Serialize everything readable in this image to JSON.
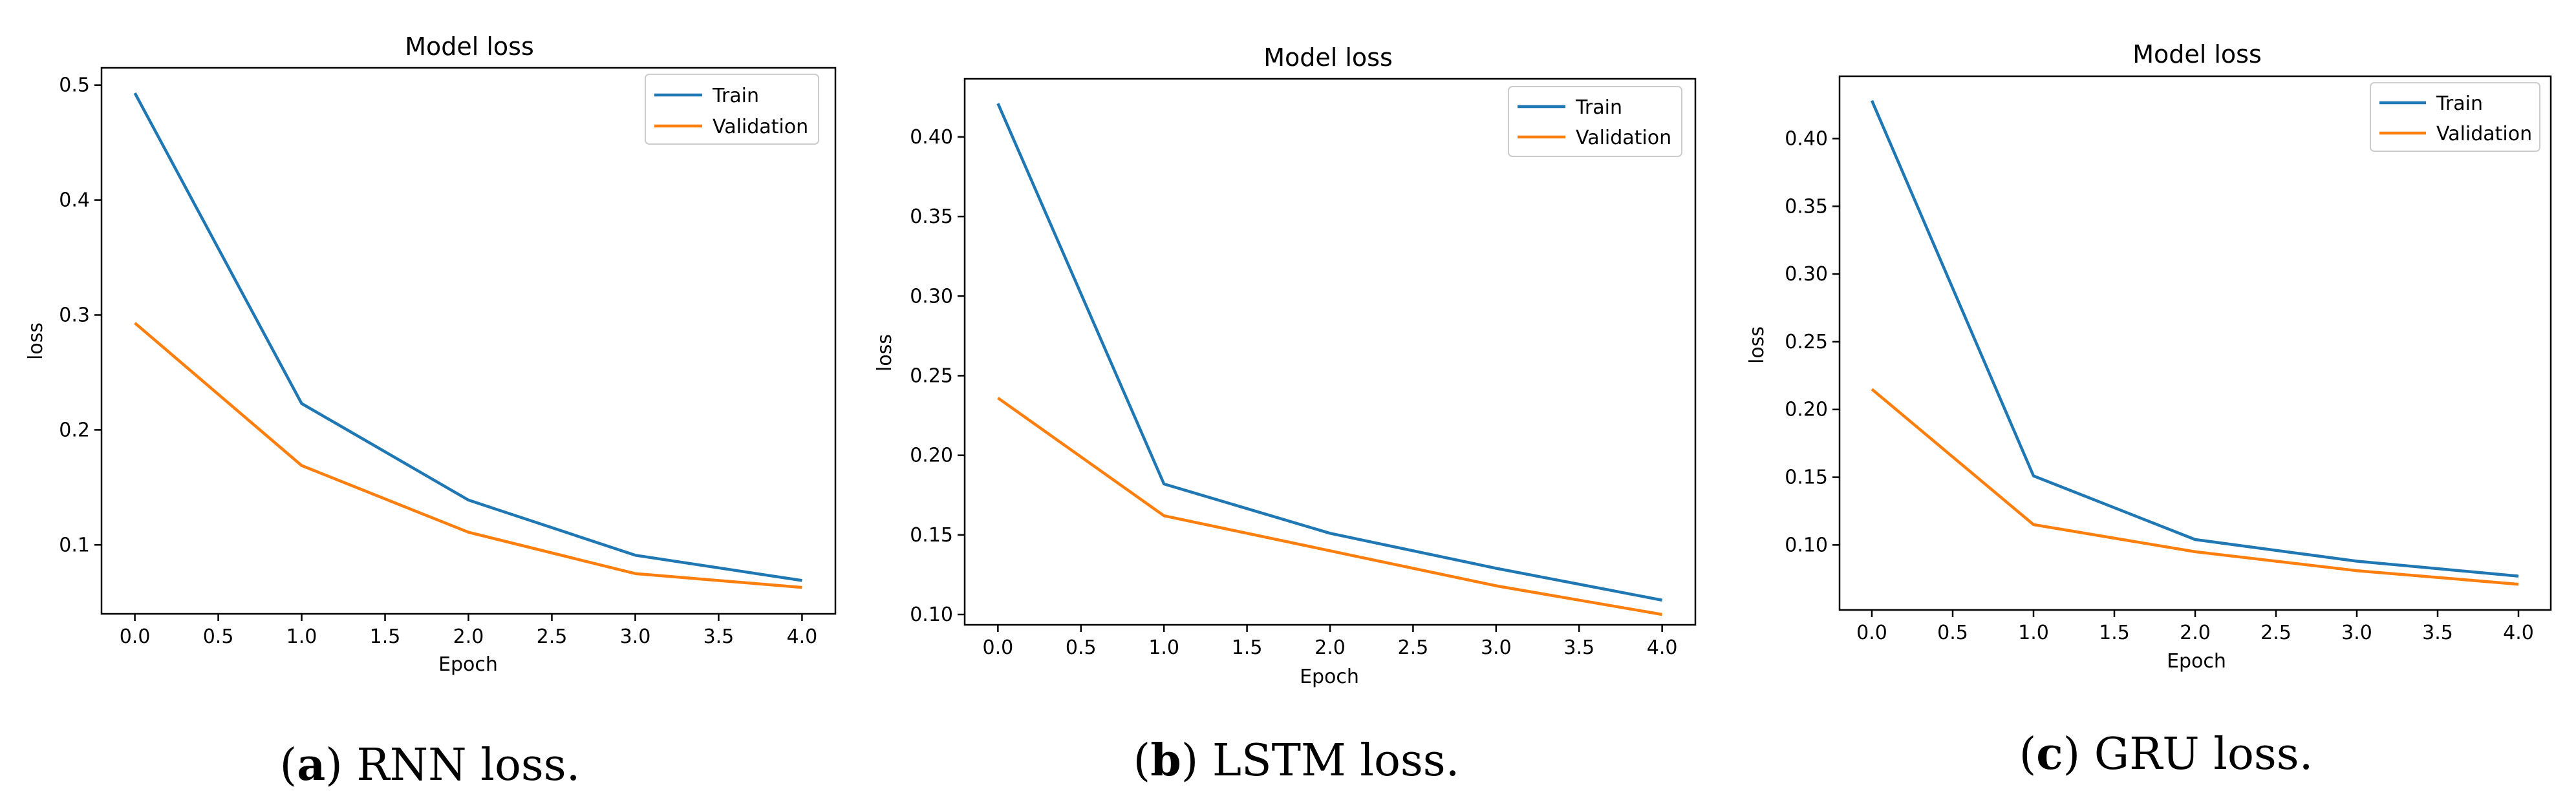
{
  "chart_data": [
    {
      "type": "line",
      "title": "Model loss",
      "xlabel": "Epoch",
      "ylabel": "loss",
      "x": [
        0,
        1,
        2,
        3,
        4
      ],
      "xlim": [
        -0.2,
        4.2
      ],
      "ylim": [
        0.04,
        0.515
      ],
      "xticks": [
        0,
        0.5,
        1,
        1.5,
        2,
        2.5,
        3,
        3.5,
        4
      ],
      "xtick_labels": [
        "0.0",
        "0.5",
        "1.0",
        "1.5",
        "2.0",
        "2.5",
        "3.0",
        "3.5",
        "4.0"
      ],
      "yticks": [
        0.1,
        0.2,
        0.3,
        0.4,
        0.5
      ],
      "ytick_labels": [
        "0.1",
        "0.2",
        "0.3",
        "0.4",
        "0.5"
      ],
      "legend_position": "top-right",
      "series": [
        {
          "name": "Train",
          "color": "#1f77b4",
          "values": [
            0.493,
            0.223,
            0.139,
            0.091,
            0.069
          ]
        },
        {
          "name": "Validation",
          "color": "#ff7f0e",
          "values": [
            0.293,
            0.169,
            0.111,
            0.075,
            0.063
          ]
        }
      ],
      "caption_letter": "a",
      "caption_text": " RNN loss."
    },
    {
      "type": "line",
      "title": "Model loss",
      "xlabel": "Epoch",
      "ylabel": "loss",
      "x": [
        0,
        1,
        2,
        3,
        4
      ],
      "xlim": [
        -0.2,
        4.2
      ],
      "ylim": [
        0.0935,
        0.4365
      ],
      "xticks": [
        0,
        0.5,
        1,
        1.5,
        2,
        2.5,
        3,
        3.5,
        4
      ],
      "xtick_labels": [
        "0.0",
        "0.5",
        "1.0",
        "1.5",
        "2.0",
        "2.5",
        "3.0",
        "3.5",
        "4.0"
      ],
      "yticks": [
        0.1,
        0.15,
        0.2,
        0.25,
        0.3,
        0.35,
        0.4
      ],
      "ytick_labels": [
        "0.10",
        "0.15",
        "0.20",
        "0.25",
        "0.30",
        "0.35",
        "0.40"
      ],
      "legend_position": "top-right",
      "series": [
        {
          "name": "Train",
          "color": "#1f77b4",
          "values": [
            0.421,
            0.182,
            0.151,
            0.129,
            0.109
          ]
        },
        {
          "name": "Validation",
          "color": "#ff7f0e",
          "values": [
            0.236,
            0.162,
            0.14,
            0.118,
            0.1
          ]
        }
      ],
      "caption_letter": "b",
      "caption_text": " LSTM loss."
    },
    {
      "type": "line",
      "title": "Model loss",
      "xlabel": "Epoch",
      "ylabel": "loss",
      "x": [
        0,
        1,
        2,
        3,
        4
      ],
      "xlim": [
        -0.2,
        4.2
      ],
      "ylim": [
        0.052,
        0.446
      ],
      "xticks": [
        0,
        0.5,
        1,
        1.5,
        2,
        2.5,
        3,
        3.5,
        4
      ],
      "xtick_labels": [
        "0.0",
        "0.5",
        "1.0",
        "1.5",
        "2.0",
        "2.5",
        "3.0",
        "3.5",
        "4.0"
      ],
      "yticks": [
        0.1,
        0.15,
        0.2,
        0.25,
        0.3,
        0.35,
        0.4
      ],
      "ytick_labels": [
        "0.10",
        "0.15",
        "0.20",
        "0.25",
        "0.30",
        "0.35",
        "0.40"
      ],
      "legend_position": "top-right",
      "series": [
        {
          "name": "Train",
          "color": "#1f77b4",
          "values": [
            0.428,
            0.151,
            0.104,
            0.088,
            0.077
          ]
        },
        {
          "name": "Validation",
          "color": "#ff7f0e",
          "values": [
            0.215,
            0.115,
            0.095,
            0.081,
            0.071
          ]
        }
      ],
      "caption_letter": "c",
      "caption_text": " GRU loss."
    }
  ]
}
